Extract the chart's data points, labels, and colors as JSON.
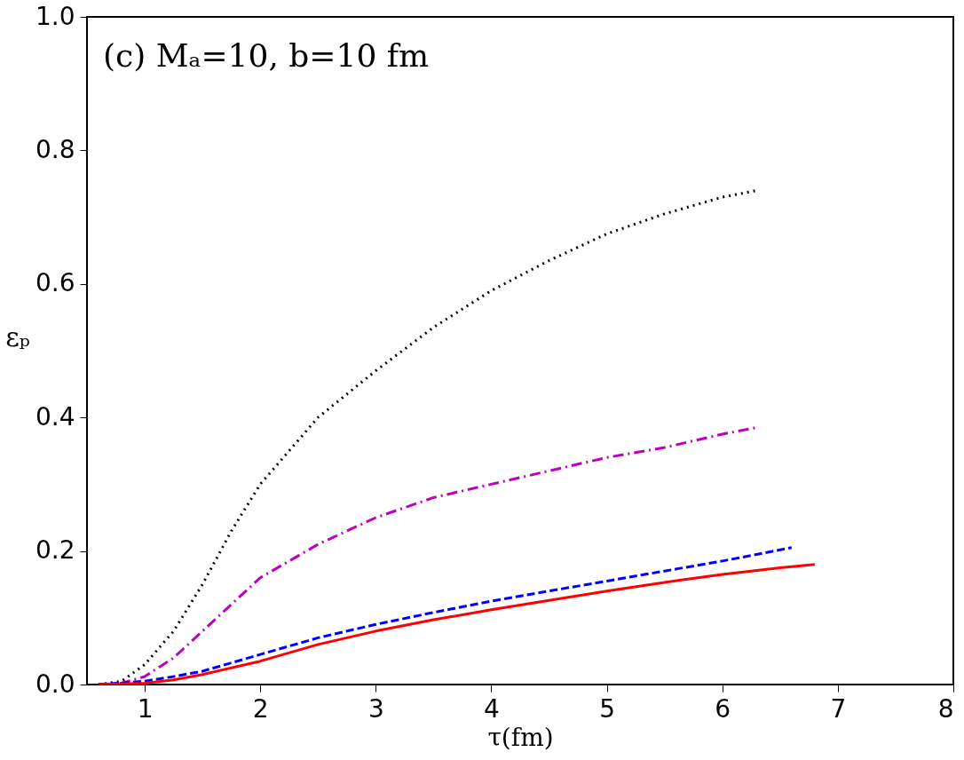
{
  "chart_data": {
    "type": "line",
    "xlabel": "τ(fm)",
    "ylabel": "εₚ",
    "annotations": [
      "(c)    Mₐ=10, b=10 fm"
    ],
    "xlim": [
      0.5,
      8
    ],
    "xticks": [
      1,
      2,
      3,
      4,
      5,
      6,
      7,
      8
    ],
    "ylim": [
      0,
      1.0
    ],
    "yticks": [
      {
        "value": 0,
        "label": "0.0"
      },
      {
        "value": 0.2,
        "label": "0.2"
      },
      {
        "value": 0.4,
        "label": "0.4"
      },
      {
        "value": 0.6,
        "label": "0.6"
      },
      {
        "value": 0.8,
        "label": "0.8"
      },
      {
        "value": 1.0,
        "label": "1.0"
      }
    ],
    "grid": false,
    "series": [
      {
        "color": "#000000",
        "line_style": "dotted",
        "x": [
          0.6,
          0.8,
          1.0,
          1.25,
          1.5,
          1.75,
          2.0,
          2.5,
          3.0,
          3.5,
          4.0,
          4.5,
          5.0,
          5.5,
          6.0,
          6.3
        ],
        "values": [
          0.0,
          0.005,
          0.03,
          0.08,
          0.15,
          0.23,
          0.3,
          0.4,
          0.47,
          0.535,
          0.59,
          0.635,
          0.675,
          0.705,
          0.73,
          0.74
        ]
      },
      {
        "color": "#bf00bf",
        "line_style": "dashdot",
        "x": [
          0.6,
          0.8,
          1.0,
          1.25,
          1.5,
          1.75,
          2.0,
          2.5,
          3.0,
          3.5,
          4.0,
          4.5,
          5.0,
          5.5,
          6.0,
          6.3
        ],
        "values": [
          0.0,
          0.002,
          0.012,
          0.04,
          0.08,
          0.12,
          0.16,
          0.21,
          0.25,
          0.28,
          0.3,
          0.32,
          0.34,
          0.355,
          0.375,
          0.385
        ]
      },
      {
        "color": "#0000ff",
        "line_style": "dashed",
        "x": [
          0.6,
          1.0,
          1.25,
          1.5,
          2.0,
          2.5,
          3.0,
          3.5,
          4.0,
          4.5,
          5.0,
          5.5,
          6.0,
          6.6
        ],
        "values": [
          0.0,
          0.005,
          0.012,
          0.02,
          0.045,
          0.07,
          0.09,
          0.108,
          0.125,
          0.14,
          0.155,
          0.17,
          0.185,
          0.205
        ]
      },
      {
        "color": "#ff0000",
        "line_style": "solid",
        "x": [
          0.6,
          1.0,
          1.25,
          1.5,
          2.0,
          2.5,
          3.0,
          3.5,
          4.0,
          4.5,
          5.0,
          5.5,
          6.0,
          6.5,
          6.8
        ],
        "values": [
          0.0,
          0.002,
          0.007,
          0.015,
          0.035,
          0.06,
          0.08,
          0.097,
          0.112,
          0.126,
          0.14,
          0.153,
          0.165,
          0.175,
          0.18
        ]
      }
    ]
  }
}
